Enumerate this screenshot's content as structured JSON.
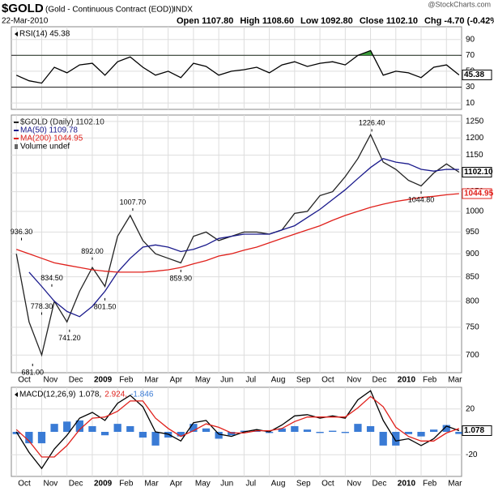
{
  "header": {
    "symbol": "$GOLD",
    "description": "(Gold - Continuous Contract (EOD))",
    "exchange": "INDX",
    "date": "22-Mar-2010",
    "quote": [
      "Open 1107.80",
      "High 1108.60",
      "Low 1092.80",
      "Close 1102.10",
      "Chg -4.70 (-0.42%)"
    ],
    "credit": "@StockCharts.com"
  },
  "chart_data": [
    {
      "type": "line",
      "title": "RSI(14) 45.38",
      "x": [
        0,
        0.5,
        1,
        1.5,
        2,
        2.5,
        3,
        3.5,
        4,
        4.5,
        5,
        5.5,
        6,
        6.5,
        7,
        7.5,
        8,
        8.5,
        9,
        9.5,
        10,
        10.5,
        11,
        11.5,
        12,
        12.5,
        13,
        13.5,
        14,
        14.5,
        15,
        15.5,
        16,
        16.5,
        17,
        17.5
      ],
      "series": [
        {
          "color": "#000000",
          "overbought_color": "#3a9a3a",
          "values": [
            45,
            38,
            35,
            55,
            48,
            58,
            60,
            45,
            62,
            68,
            55,
            45,
            50,
            42,
            60,
            56,
            45,
            50,
            52,
            55,
            48,
            58,
            62,
            56,
            60,
            62,
            58,
            70,
            76,
            45,
            50,
            48,
            42,
            55,
            58,
            45.38
          ]
        }
      ],
      "xlim": [
        -0.2,
        17.6
      ],
      "ylim": [
        2,
        106
      ],
      "yticks": [
        10,
        30,
        50,
        70,
        90
      ],
      "levels": [
        30,
        70
      ],
      "end_labels": [
        {
          "value": 45.38,
          "label": "45.38",
          "color": "#000000"
        }
      ]
    },
    {
      "type": "line",
      "log_scale": true,
      "x": [
        0,
        0.5,
        1,
        1.5,
        2,
        2.5,
        3,
        3.5,
        4,
        4.5,
        5,
        5.5,
        6,
        6.5,
        7,
        7.5,
        8,
        8.5,
        9,
        9.5,
        10,
        10.5,
        11,
        11.5,
        12,
        12.5,
        13,
        13.5,
        14,
        14.5,
        15,
        15.5,
        16,
        16.5,
        17,
        17.5
      ],
      "series": [
        {
          "name": "$GOLD (Daily) 1102.10",
          "color": "#222222",
          "values": [
            900,
            760,
            700,
            800,
            760,
            820,
            870,
            830,
            940,
            990,
            930,
            900,
            890,
            880,
            940,
            950,
            930,
            940,
            950,
            950,
            945,
            955,
            995,
            1000,
            1040,
            1050,
            1090,
            1140,
            1210,
            1130,
            1110,
            1080,
            1065,
            1100,
            1125,
            1102.1
          ]
        },
        {
          "name": "MA(50) 1109.78",
          "color": "#1a1a8c",
          "values": [
            null,
            860,
            830,
            800,
            780,
            770,
            790,
            820,
            860,
            890,
            915,
            920,
            915,
            905,
            910,
            920,
            935,
            940,
            945,
            945,
            945,
            955,
            965,
            985,
            1005,
            1030,
            1055,
            1085,
            1115,
            1140,
            1130,
            1125,
            1110,
            1105,
            1110,
            1109.78
          ]
        },
        {
          "name": "MA(200) 1044.95",
          "color": "#e0201b",
          "values": [
            910,
            900,
            890,
            880,
            875,
            870,
            865,
            862,
            860,
            860,
            860,
            862,
            865,
            870,
            878,
            885,
            895,
            900,
            908,
            915,
            925,
            935,
            945,
            955,
            965,
            978,
            990,
            1000,
            1010,
            1018,
            1025,
            1030,
            1035,
            1038,
            1042,
            1044.95
          ]
        }
      ],
      "legend_note": "Volume undef",
      "xlim": [
        -0.2,
        17.6
      ],
      "ylim": [
        670,
        1270
      ],
      "yticks": [
        700,
        750,
        800,
        850,
        900,
        950,
        1000,
        1050,
        1100,
        1150,
        1200,
        1250
      ],
      "xticks": [
        {
          "value": 0,
          "label": "Oct"
        },
        {
          "value": 1,
          "label": "Nov"
        },
        {
          "value": 2,
          "label": "Dec"
        },
        {
          "value": 3,
          "label": "2009"
        },
        {
          "value": 4,
          "label": "Feb"
        },
        {
          "value": 5,
          "label": "Mar"
        },
        {
          "value": 6,
          "label": "Apr"
        },
        {
          "value": 7,
          "label": "May"
        },
        {
          "value": 8,
          "label": "Jun"
        },
        {
          "value": 9,
          "label": "Jul"
        },
        {
          "value": 10,
          "label": "Aug"
        },
        {
          "value": 11,
          "label": "Sep"
        },
        {
          "value": 12,
          "label": "Oct"
        },
        {
          "value": 13,
          "label": "Nov"
        },
        {
          "value": 14,
          "label": "Dec"
        },
        {
          "value": 15,
          "label": "2010"
        },
        {
          "value": 16,
          "label": "Feb"
        },
        {
          "value": 17,
          "label": "Mar"
        }
      ],
      "annotations": [
        {
          "x": 0.2,
          "value": 936.3,
          "label": "936.30"
        },
        {
          "x": 0.64,
          "value": 681,
          "label": "681.00"
        },
        {
          "x": 1.0,
          "value": 778.3,
          "label": "778.30"
        },
        {
          "x": 1.4,
          "value": 834.5,
          "label": "834.50"
        },
        {
          "x": 2.1,
          "value": 741.2,
          "label": "741.20"
        },
        {
          "x": 3.0,
          "value": 892,
          "label": "892.00"
        },
        {
          "x": 3.5,
          "value": 801.5,
          "label": "801.50"
        },
        {
          "x": 4.6,
          "value": 1007.7,
          "label": "1007.70"
        },
        {
          "x": 6.5,
          "value": 859.9,
          "label": "859.90"
        },
        {
          "x": 14.05,
          "value": 1226.4,
          "label": "1226.40"
        },
        {
          "x": 16.0,
          "value": 1044.8,
          "label": "1044.80"
        }
      ],
      "end_labels": [
        {
          "value": 1102.1,
          "label": "1102.10",
          "color": "#000000"
        },
        {
          "value": 1044.95,
          "label": "1044.95",
          "color": "#e0201b"
        }
      ]
    },
    {
      "type": "line",
      "title": "MACD(12,26,9)",
      "x": [
        0,
        0.5,
        1,
        1.5,
        2,
        2.5,
        3,
        3.5,
        4,
        4.5,
        5,
        5.5,
        6,
        6.5,
        7,
        7.5,
        8,
        8.5,
        9,
        9.5,
        10,
        10.5,
        11,
        11.5,
        12,
        12.5,
        13,
        13.5,
        14,
        14.5,
        15,
        15.5,
        16,
        16.5,
        17,
        17.5
      ],
      "series": [
        {
          "name": "-1.846",
          "style": "bar",
          "color": "#3a7bd5",
          "values": [
            -2,
            -10,
            -10,
            7,
            9,
            10,
            5,
            -3,
            7,
            5,
            -5,
            -12,
            -5,
            -4,
            7,
            3,
            -6,
            -3,
            1,
            1,
            -1,
            3,
            5,
            2,
            -1,
            1,
            -1,
            7,
            5,
            -12,
            -12,
            -2,
            -4,
            2,
            6,
            -1.846
          ]
        },
        {
          "name": "1.078,",
          "color": "#000000",
          "values": [
            0,
            -18,
            -32,
            -15,
            -3,
            12,
            17,
            10,
            25,
            32,
            22,
            0,
            -2,
            -8,
            8,
            10,
            -2,
            -4,
            0,
            2,
            0,
            6,
            14,
            15,
            12,
            14,
            12,
            28,
            36,
            10,
            -8,
            -6,
            -12,
            -6,
            5,
            1.078
          ]
        },
        {
          "name": "2.924,",
          "color": "#e0201b",
          "values": [
            2,
            -8,
            -22,
            -22,
            -12,
            2,
            12,
            13,
            18,
            27,
            27,
            12,
            3,
            -4,
            1,
            7,
            4,
            -1,
            -1,
            1,
            1,
            3,
            9,
            13,
            13,
            13,
            13,
            21,
            31,
            22,
            4,
            -4,
            -8,
            -8,
            -1,
            2.924
          ]
        }
      ],
      "legend_order": [
        1,
        2,
        0
      ],
      "xlim": [
        -0.2,
        17.6
      ],
      "ylim": [
        -39,
        39
      ],
      "yticks": [
        -20,
        20
      ],
      "xticks": [
        {
          "value": 0,
          "label": "Oct"
        },
        {
          "value": 1,
          "label": "Nov"
        },
        {
          "value": 2,
          "label": "Dec"
        },
        {
          "value": 3,
          "label": "2009"
        },
        {
          "value": 4,
          "label": "Feb"
        },
        {
          "value": 5,
          "label": "Mar"
        },
        {
          "value": 6,
          "label": "Apr"
        },
        {
          "value": 7,
          "label": "May"
        },
        {
          "value": 8,
          "label": "Jun"
        },
        {
          "value": 9,
          "label": "Jul"
        },
        {
          "value": 10,
          "label": "Aug"
        },
        {
          "value": 11,
          "label": "Sep"
        },
        {
          "value": 12,
          "label": "Oct"
        },
        {
          "value": 13,
          "label": "Nov"
        },
        {
          "value": 14,
          "label": "Dec"
        },
        {
          "value": 15,
          "label": "2010"
        },
        {
          "value": 16,
          "label": "Feb"
        },
        {
          "value": 17,
          "label": "Mar"
        }
      ],
      "end_labels": [
        {
          "value": 1.078,
          "label": "1.078",
          "color": "#000000"
        }
      ]
    }
  ]
}
